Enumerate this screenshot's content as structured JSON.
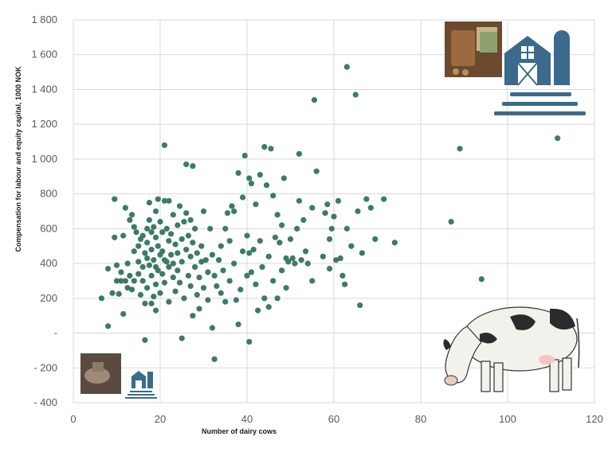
{
  "chart_data": {
    "type": "scatter",
    "title": "",
    "xlabel": "Number of dairy cows",
    "ylabel": "Compensation for labour and equity capital, 1000 NOK",
    "xlim": [
      0,
      120
    ],
    "ylim": [
      -400,
      1800
    ],
    "x_ticks": [
      0,
      20,
      40,
      60,
      80,
      100,
      120
    ],
    "x_tick_labels": [
      "0",
      "20",
      "40",
      "60",
      "80",
      "100",
      "120"
    ],
    "y_ticks": [
      -400,
      -200,
      0,
      200,
      400,
      600,
      800,
      1000,
      1200,
      1400,
      1600,
      1800
    ],
    "y_tick_labels": [
      "- 400",
      "- 200",
      "-",
      "200",
      "400",
      "600",
      "800",
      "1 000",
      "1 200",
      "1 400",
      "1 600",
      "1 800"
    ],
    "grid": true,
    "marker_color": "#3d7a68",
    "points": [
      [
        6.5,
        200
      ],
      [
        8,
        40
      ],
      [
        8,
        370
      ],
      [
        9,
        230
      ],
      [
        9.5,
        770
      ],
      [
        9.5,
        550
      ],
      [
        10,
        300
      ],
      [
        10,
        390
      ],
      [
        10.5,
        225
      ],
      [
        11,
        300
      ],
      [
        11,
        350
      ],
      [
        11.5,
        110
      ],
      [
        11.5,
        560
      ],
      [
        12,
        720
      ],
      [
        12,
        300
      ],
      [
        12.5,
        400
      ],
      [
        12.5,
        260
      ],
      [
        13,
        330
      ],
      [
        13,
        650
      ],
      [
        13.5,
        680
      ],
      [
        13.5,
        250
      ],
      [
        14,
        300
      ],
      [
        14,
        470
      ],
      [
        14,
        610
      ],
      [
        14.5,
        580
      ],
      [
        15,
        500
      ],
      [
        15,
        410
      ],
      [
        15,
        340
      ],
      [
        15.5,
        540
      ],
      [
        15.5,
        220
      ],
      [
        16,
        300
      ],
      [
        16,
        560
      ],
      [
        16,
        380
      ],
      [
        16.5,
        170
      ],
      [
        16.5,
        460
      ],
      [
        16.5,
        -40
      ],
      [
        17,
        600
      ],
      [
        17,
        520
      ],
      [
        17,
        430
      ],
      [
        17,
        260
      ],
      [
        17.5,
        750
      ],
      [
        17.5,
        650
      ],
      [
        17.5,
        390
      ],
      [
        18,
        580
      ],
      [
        18,
        480
      ],
      [
        18,
        330
      ],
      [
        18,
        170
      ],
      [
        18.5,
        610
      ],
      [
        18.5,
        420
      ],
      [
        18.5,
        210
      ],
      [
        19,
        700
      ],
      [
        19,
        550
      ],
      [
        19,
        380
      ],
      [
        19,
        280
      ],
      [
        19,
        130
      ],
      [
        19.5,
        770
      ],
      [
        19.5,
        500
      ],
      [
        19.5,
        360
      ],
      [
        20,
        640
      ],
      [
        20,
        450
      ],
      [
        20,
        230
      ],
      [
        20.5,
        580
      ],
      [
        20.5,
        470
      ],
      [
        20.5,
        340
      ],
      [
        21,
        1080
      ],
      [
        21,
        760
      ],
      [
        21,
        420
      ],
      [
        21,
        290
      ],
      [
        21.5,
        600
      ],
      [
        21.5,
        410
      ],
      [
        22,
        760
      ],
      [
        22,
        530
      ],
      [
        22,
        380
      ],
      [
        22,
        180
      ],
      [
        22.5,
        570
      ],
      [
        22.5,
        450
      ],
      [
        23,
        680
      ],
      [
        23,
        400
      ],
      [
        23,
        320
      ],
      [
        23.5,
        510
      ],
      [
        23.5,
        240
      ],
      [
        24,
        620
      ],
      [
        24,
        460
      ],
      [
        24,
        360
      ],
      [
        24.5,
        730
      ],
      [
        24.5,
        290
      ],
      [
        25,
        540
      ],
      [
        25,
        410
      ],
      [
        25,
        -30
      ],
      [
        25.5,
        640
      ],
      [
        25.5,
        200
      ],
      [
        26,
        970
      ],
      [
        26,
        690
      ],
      [
        26,
        480
      ],
      [
        26.5,
        560
      ],
      [
        26.5,
        330
      ],
      [
        27,
        650
      ],
      [
        27,
        440
      ],
      [
        27,
        270
      ],
      [
        27.5,
        960
      ],
      [
        27.5,
        520
      ],
      [
        27.5,
        100
      ],
      [
        28,
        600
      ],
      [
        28,
        380
      ],
      [
        28.5,
        460
      ],
      [
        28.5,
        220
      ],
      [
        29,
        320
      ],
      [
        29,
        140
      ],
      [
        29.5,
        500
      ],
      [
        29.5,
        410
      ],
      [
        30,
        700
      ],
      [
        30,
        260
      ],
      [
        30.5,
        420
      ],
      [
        31,
        350
      ],
      [
        31,
        190
      ],
      [
        31.5,
        600
      ],
      [
        32,
        450
      ],
      [
        32,
        30
      ],
      [
        32.5,
        330
      ],
      [
        32.5,
        -150
      ],
      [
        33,
        270
      ],
      [
        33.5,
        420
      ],
      [
        34,
        500
      ],
      [
        34,
        230
      ],
      [
        34.5,
        360
      ],
      [
        35,
        180
      ],
      [
        35,
        600
      ],
      [
        35.5,
        690
      ],
      [
        36,
        530
      ],
      [
        36,
        300
      ],
      [
        36.5,
        730
      ],
      [
        37,
        700
      ],
      [
        37,
        400
      ],
      [
        37.5,
        190
      ],
      [
        38,
        920
      ],
      [
        38,
        50
      ],
      [
        38.5,
        250
      ],
      [
        39,
        780
      ],
      [
        39,
        470
      ],
      [
        39.5,
        1020
      ],
      [
        40,
        560
      ],
      [
        40,
        330
      ],
      [
        40.5,
        890
      ],
      [
        40.5,
        460
      ],
      [
        40.5,
        -50
      ],
      [
        41,
        860
      ],
      [
        41,
        350
      ],
      [
        41.5,
        480
      ],
      [
        42,
        740
      ],
      [
        42,
        280
      ],
      [
        42.5,
        130
      ],
      [
        43,
        910
      ],
      [
        43,
        530
      ],
      [
        43.5,
        380
      ],
      [
        44,
        1070
      ],
      [
        44,
        200
      ],
      [
        44.5,
        850
      ],
      [
        45,
        440
      ],
      [
        45,
        150
      ],
      [
        45.5,
        1060
      ],
      [
        46,
        790
      ],
      [
        46,
        300
      ],
      [
        46.5,
        550
      ],
      [
        47,
        680
      ],
      [
        47,
        200
      ],
      [
        47.5,
        520
      ],
      [
        48,
        620
      ],
      [
        48,
        360
      ],
      [
        48.5,
        890
      ],
      [
        49,
        430
      ],
      [
        49,
        260
      ],
      [
        49.5,
        410
      ],
      [
        50,
        540
      ],
      [
        50.5,
        430
      ],
      [
        51,
        400
      ],
      [
        51.5,
        600
      ],
      [
        52,
        1030
      ],
      [
        52,
        760
      ],
      [
        52.5,
        420
      ],
      [
        53,
        650
      ],
      [
        53.5,
        470
      ],
      [
        54,
        400
      ],
      [
        55,
        720
      ],
      [
        55,
        300
      ],
      [
        55.5,
        1340
      ],
      [
        56,
        930
      ],
      [
        57.5,
        440
      ],
      [
        58,
        690
      ],
      [
        58.5,
        740
      ],
      [
        59,
        540
      ],
      [
        59,
        370
      ],
      [
        59.5,
        600
      ],
      [
        60,
        670
      ],
      [
        60.5,
        420
      ],
      [
        61,
        760
      ],
      [
        61.5,
        430
      ],
      [
        62,
        330
      ],
      [
        62.5,
        280
      ],
      [
        63,
        1530
      ],
      [
        63,
        600
      ],
      [
        64,
        500
      ],
      [
        65,
        1370
      ],
      [
        65.5,
        700
      ],
      [
        66,
        160
      ],
      [
        66.5,
        460
      ],
      [
        67.5,
        770
      ],
      [
        68.5,
        720
      ],
      [
        69.5,
        540
      ],
      [
        71.5,
        770
      ],
      [
        74,
        520
      ],
      [
        87,
        640
      ],
      [
        89,
        1060
      ],
      [
        94,
        310
      ],
      [
        111.5,
        1120
      ]
    ]
  }
}
